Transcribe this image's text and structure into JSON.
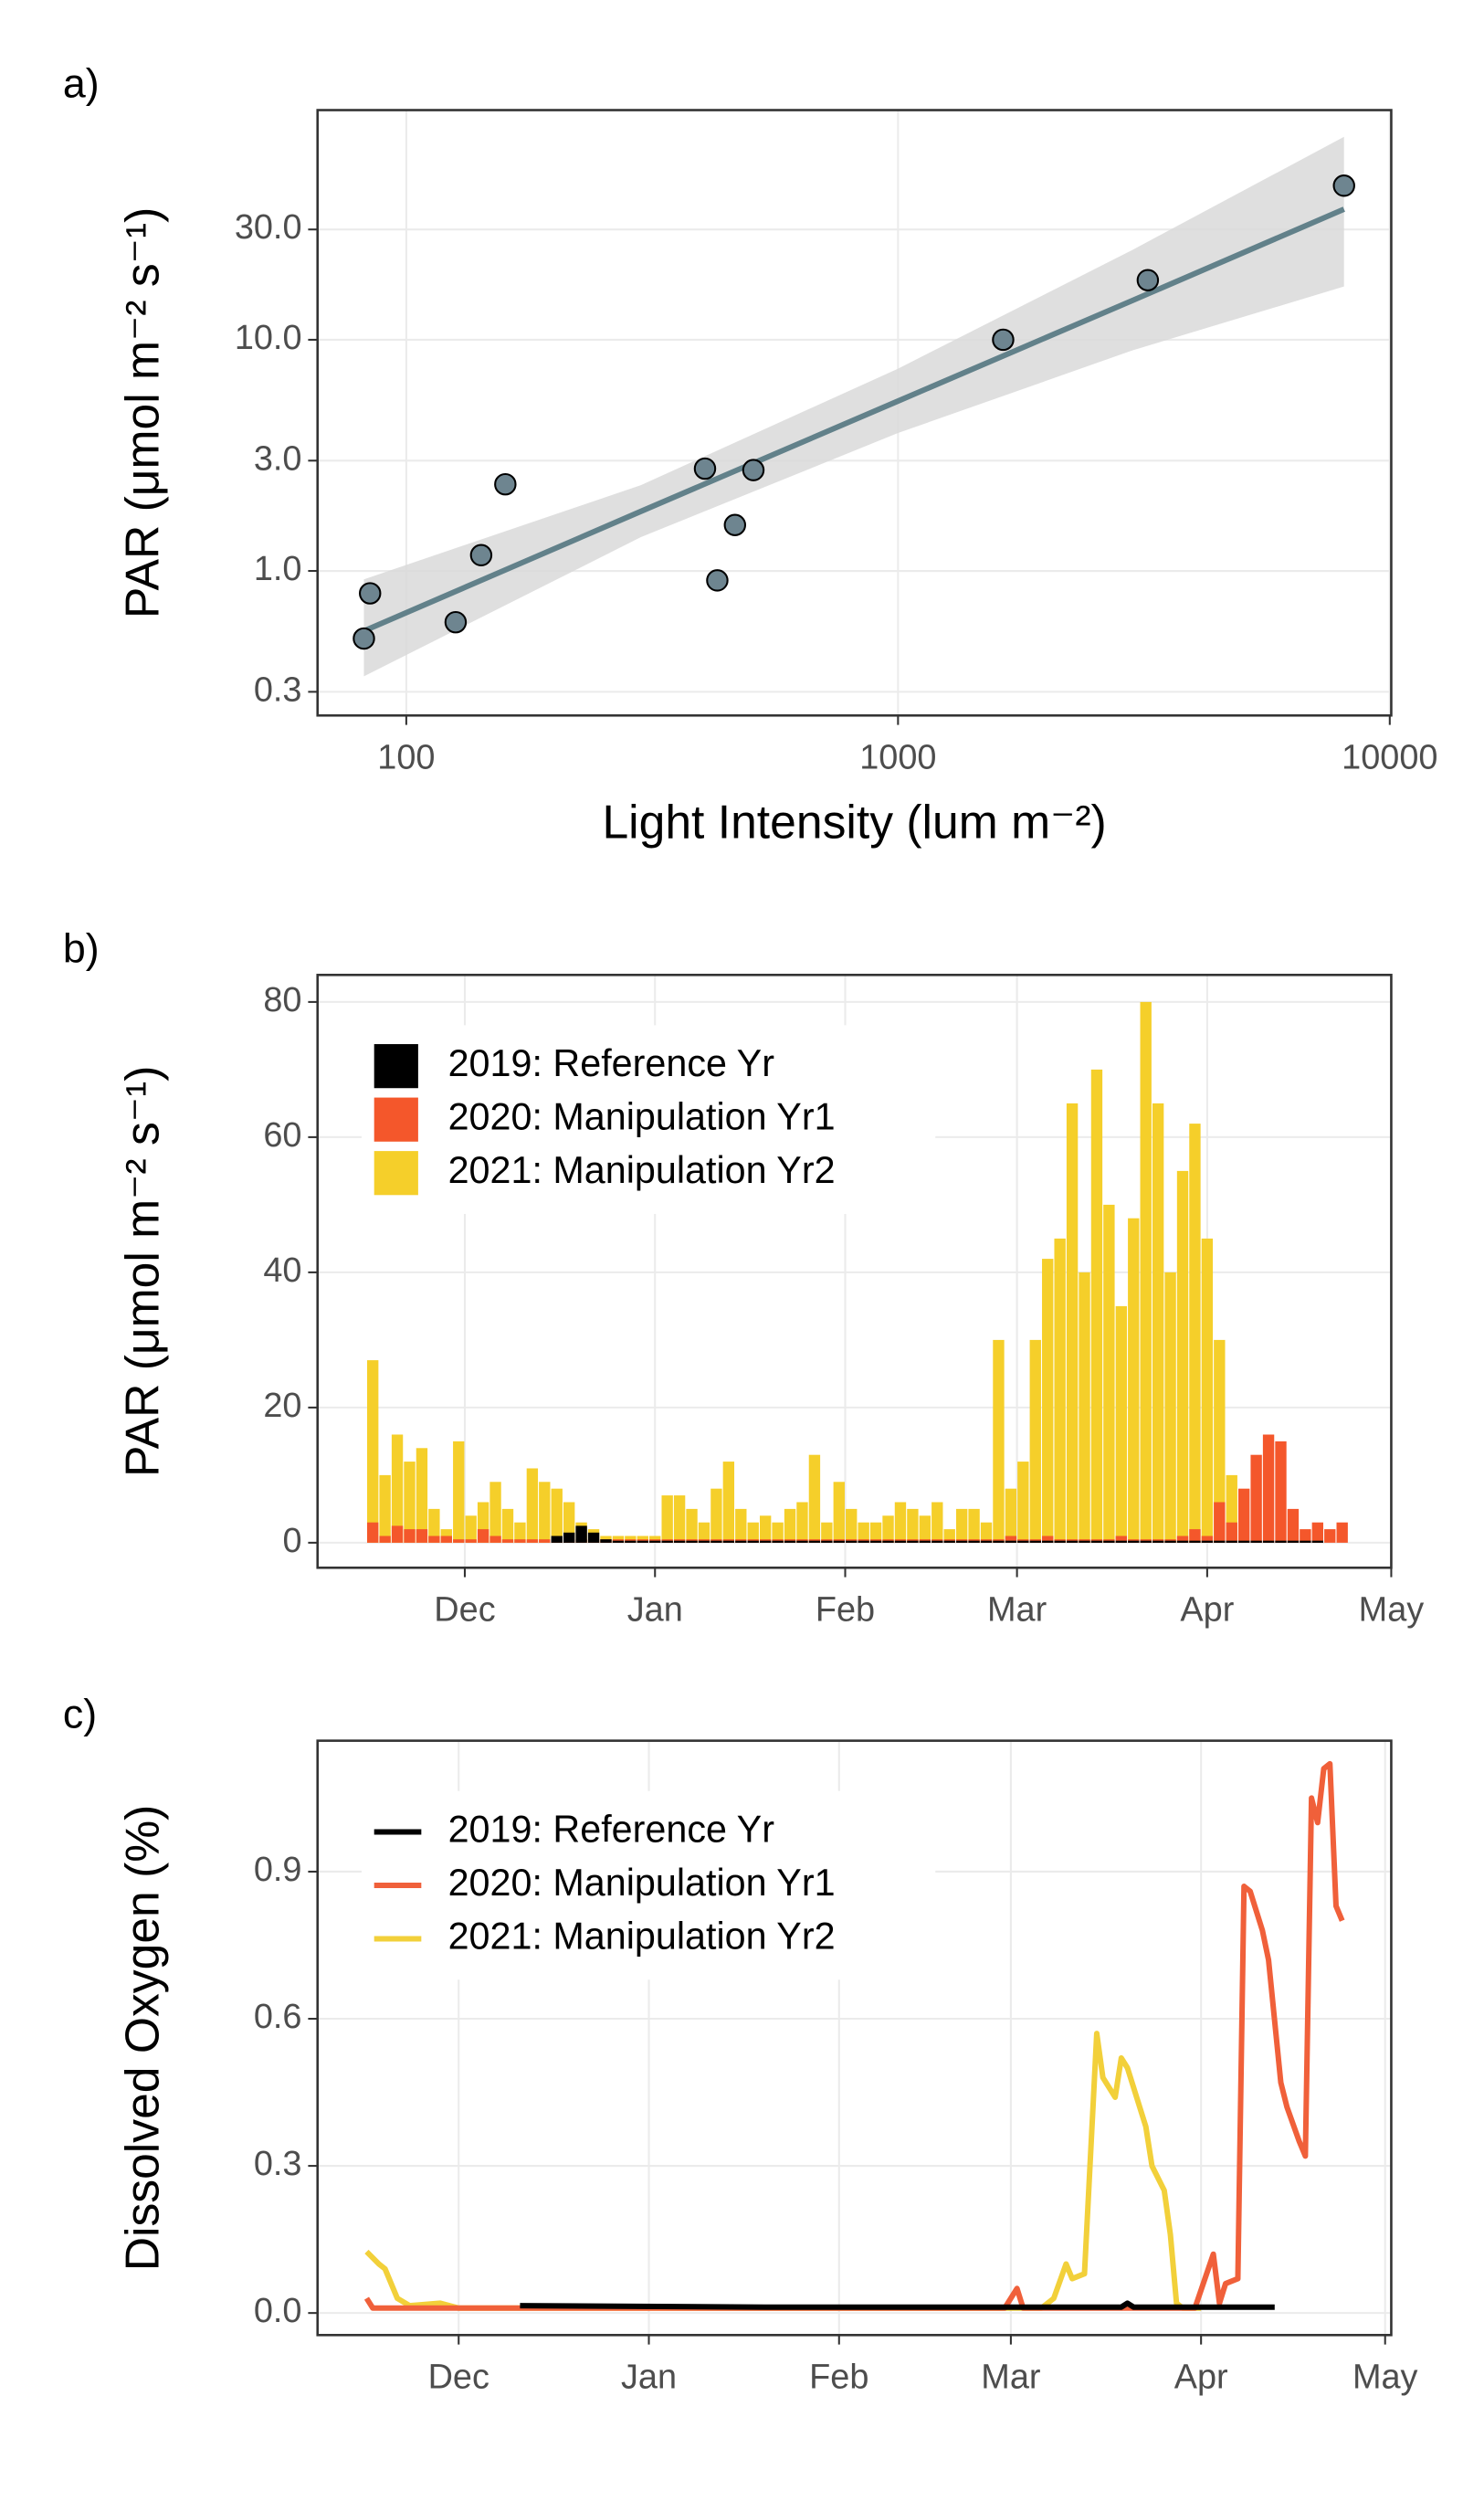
{
  "chart_data": [
    {
      "type": "scatter",
      "panel_label": "a)",
      "x_label": "Light Intensity (lum m⁻²)",
      "y_label": "PAR (μmol m⁻² s⁻¹)",
      "xscale": "log",
      "yscale": "log",
      "xlim": [
        66,
        10070
      ],
      "ylim": [
        0.237,
        98.5
      ],
      "xticks": [
        100,
        1000,
        10000
      ],
      "yticks": [
        0.3,
        {
          "value": 1,
          "label": "1.0"
        },
        {
          "value": 3,
          "label": "3.0"
        },
        {
          "value": 10,
          "label": "10.0"
        },
        {
          "value": 30,
          "label": "30.0"
        }
      ],
      "grid": true,
      "color": "#6e8590",
      "x": [
        82,
        84.4,
        126,
        142,
        159,
        405,
        429,
        466,
        508,
        1636,
        3221,
        8072
      ],
      "y": [
        0.51,
        0.8,
        0.6,
        1.17,
        2.37,
        2.77,
        0.91,
        1.58,
        2.73,
        10,
        18.1,
        46.4
      ],
      "fit": {
        "color": "#62818a",
        "band_color": "#d9d9d9",
        "x": [
          82,
          300,
          1000,
          3000,
          8072
        ],
        "y": [
          0.55,
          1.81,
          5.43,
          14.8,
          36.7
        ],
        "lower": [
          0.35,
          1.4,
          3.95,
          9.0,
          17
        ],
        "upper": [
          0.92,
          2.35,
          7.5,
          24.5,
          75.5
        ]
      }
    },
    {
      "type": "bar",
      "panel_label": "b)",
      "y_label": "PAR (μmol m⁻² s⁻¹)",
      "xlim": [
        6,
        181
      ],
      "ylim": [
        -3.7,
        84
      ],
      "xticks": [
        {
          "value": 30,
          "label": "Dec"
        },
        {
          "value": 61,
          "label": "Jan"
        },
        {
          "value": 92,
          "label": "Feb"
        },
        {
          "value": 120,
          "label": "Mar"
        },
        {
          "value": 151,
          "label": "Apr"
        },
        {
          "value": 181,
          "label": "May"
        }
      ],
      "yticks": [
        0,
        20,
        40,
        60,
        80
      ],
      "grid": true,
      "legend": "top-left",
      "x": [
        15,
        17,
        19,
        21,
        23,
        25,
        27,
        29,
        31,
        33,
        35,
        37,
        39,
        41,
        43,
        45,
        47,
        49,
        51,
        53,
        55,
        57,
        59,
        61,
        63,
        65,
        67,
        69,
        71,
        73,
        75,
        77,
        79,
        81,
        83,
        85,
        87,
        89,
        91,
        93,
        95,
        97,
        99,
        101,
        103,
        105,
        107,
        109,
        111,
        113,
        115,
        117,
        119,
        121,
        123,
        125,
        127,
        129,
        131,
        133,
        135,
        137,
        139,
        141,
        143,
        145,
        147,
        149,
        151,
        153,
        155,
        157,
        159,
        161,
        163,
        165,
        167,
        169,
        171,
        173
      ],
      "series": [
        {
          "name": "2019: Reference Yr",
          "color": "#000000",
          "values": [
            null,
            null,
            null,
            null,
            null,
            null,
            null,
            null,
            null,
            null,
            null,
            null,
            null,
            null,
            null,
            1,
            1.5,
            2.5,
            1.5,
            0.5,
            0.3,
            0.3,
            0.3,
            0.3,
            0.3,
            0.3,
            0.3,
            0.3,
            0.3,
            0.3,
            0.3,
            0.3,
            0.3,
            0.3,
            0.3,
            0.3,
            0.3,
            0.3,
            0.3,
            0.3,
            0.3,
            0.3,
            0.3,
            0.3,
            0.3,
            0.3,
            0.3,
            0.3,
            0.3,
            0.3,
            0.3,
            0.3,
            0.3,
            0.3,
            0.3,
            0.3,
            0.3,
            0.3,
            0.3,
            0.3,
            0.3,
            0.3,
            0.3,
            0.3,
            0.3,
            0.3,
            0.3,
            0.3,
            0.3,
            0.3,
            0.3,
            0.3,
            0.3,
            0.3,
            0.3,
            0.3,
            0.3,
            0.3,
            null,
            null
          ]
        },
        {
          "name": "2020: Manipulation Yr1",
          "color": "#f4572b",
          "values": [
            3,
            1,
            2.5,
            2,
            2,
            1,
            1,
            0.5,
            0.5,
            2,
            1,
            0.5,
            0.5,
            0.5,
            0.5,
            0.5,
            0.5,
            0.5,
            0.5,
            0.5,
            0.5,
            0.5,
            0.5,
            0.5,
            0.5,
            0.5,
            0.5,
            0.5,
            0.5,
            0.5,
            0.5,
            0.5,
            0.5,
            0.5,
            0.5,
            0.5,
            0.5,
            0.5,
            0.5,
            0.5,
            0.5,
            0.5,
            0.5,
            0.5,
            0.5,
            0.5,
            0.5,
            0.5,
            0.5,
            0.5,
            0.5,
            0.5,
            1,
            0.5,
            0.5,
            1,
            0.5,
            0.5,
            0.5,
            0.5,
            0.5,
            1,
            0.5,
            0.5,
            0.5,
            0.5,
            1,
            2,
            1,
            6,
            3,
            8,
            13,
            16,
            15,
            5,
            2,
            3,
            2,
            3
          ]
        },
        {
          "name": "2021: Manipulation Yr2",
          "color": "#f5cf2a",
          "values": [
            27,
            10,
            16,
            12,
            14,
            5,
            2,
            15,
            4,
            6,
            9,
            5,
            3,
            11,
            9,
            8,
            6,
            3,
            2,
            1,
            1,
            1,
            1,
            1,
            7,
            7,
            5,
            3,
            8,
            12,
            5,
            3,
            4,
            3,
            5,
            6,
            13,
            3,
            9,
            5,
            3,
            3,
            4,
            6,
            5,
            4,
            6,
            2,
            5,
            5,
            3,
            30,
            8,
            12,
            30,
            42,
            45,
            65,
            40,
            70,
            50,
            35,
            48,
            80,
            65,
            40,
            55,
            62,
            45,
            30,
            10,
            null,
            null,
            null,
            null,
            null,
            null,
            null,
            null,
            null
          ]
        }
      ]
    },
    {
      "type": "line",
      "panel_label": "c)",
      "y_label": "Dissolved Oxygen (%)",
      "xlim": [
        7,
        182
      ],
      "ylim": [
        -0.045,
        1.167
      ],
      "xticks": [
        {
          "value": 30,
          "label": "Dec"
        },
        {
          "value": 61,
          "label": "Jan"
        },
        {
          "value": 92,
          "label": "Feb"
        },
        {
          "value": 120,
          "label": "Mar"
        },
        {
          "value": 151,
          "label": "Apr"
        },
        {
          "value": 181,
          "label": "May"
        }
      ],
      "yticks": [
        {
          "value": 0,
          "label": "0.0"
        },
        0.3,
        0.6,
        0.9
      ],
      "grid": true,
      "legend": "top-left",
      "series": [
        {
          "name": "2019: Reference Yr",
          "color": "#000000",
          "x": [
            40,
            80,
            120,
            138,
            139,
            140,
            163
          ],
          "values": [
            0.015,
            0.012,
            0.012,
            0.012,
            0.02,
            0.012,
            0.012
          ]
        },
        {
          "name": "2020: Manipulation Yr1",
          "color": "#f0603a",
          "x": [
            15,
            16,
            17,
            60,
            100,
            119,
            121,
            122,
            140,
            150,
            153,
            154,
            155,
            157,
            158,
            159,
            161,
            162,
            164,
            165,
            167,
            168,
            169,
            170,
            171,
            172,
            173,
            174
          ],
          "values": [
            0.03,
            0.01,
            0.01,
            0.01,
            0.01,
            0.01,
            0.05,
            0.01,
            0.01,
            0.01,
            0.12,
            0.02,
            0.06,
            0.07,
            0.87,
            0.86,
            0.78,
            0.72,
            0.47,
            0.42,
            0.35,
            0.32,
            1.05,
            1.0,
            1.11,
            1.12,
            0.83,
            0.8
          ]
        },
        {
          "name": "2021: Manipulation Yr2",
          "color": "#f2d03a",
          "x": [
            15,
            17,
            18,
            20,
            22,
            27,
            30,
            60,
            100,
            125,
            127,
            129,
            130,
            132,
            134,
            135,
            137,
            138,
            139,
            140,
            142,
            143,
            145,
            146,
            147,
            148,
            151
          ],
          "values": [
            0.125,
            0.1,
            0.09,
            0.03,
            0.015,
            0.02,
            0.01,
            0.01,
            0.01,
            0.01,
            0.03,
            0.1,
            0.07,
            0.08,
            0.57,
            0.48,
            0.44,
            0.52,
            0.5,
            0.46,
            0.38,
            0.3,
            0.25,
            0.16,
            0.02,
            0.01,
            0.01
          ]
        }
      ]
    }
  ]
}
